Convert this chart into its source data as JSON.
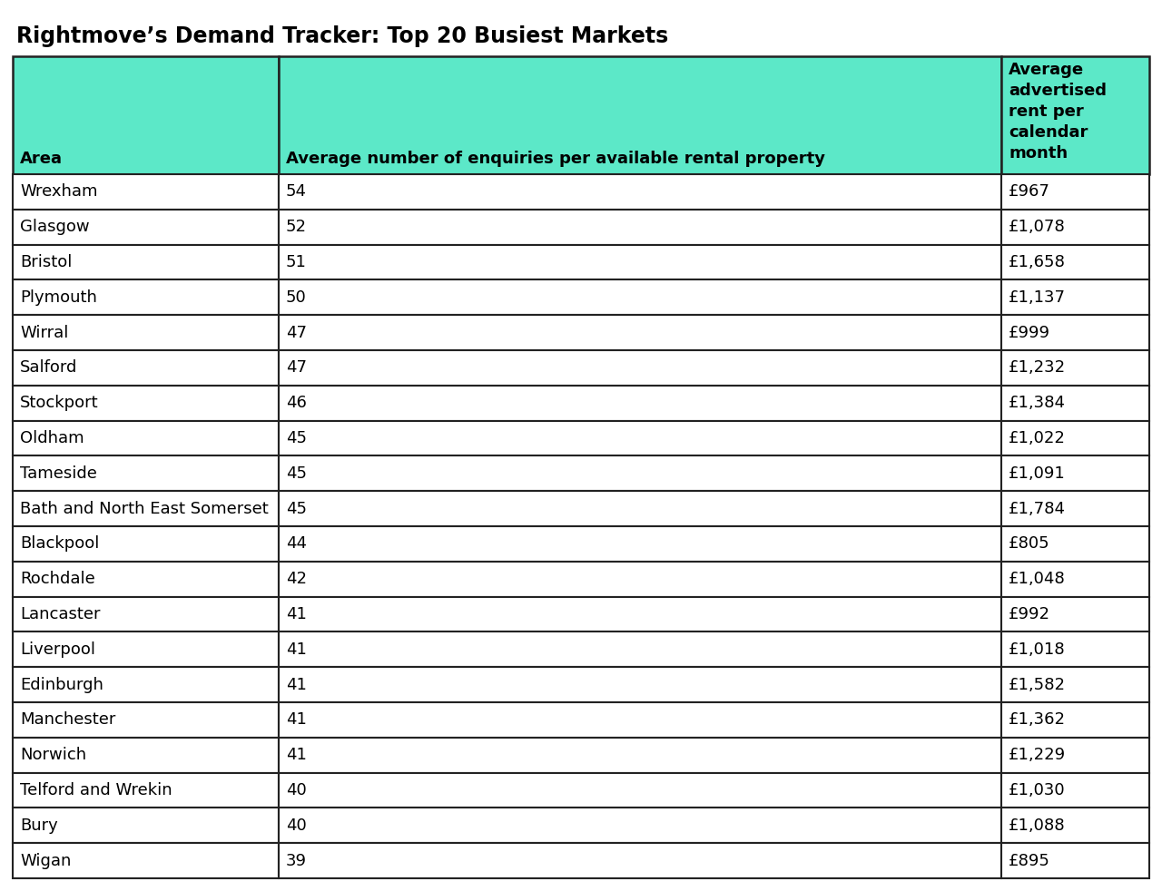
{
  "title": "Rightmove’s Demand Tracker: Top 20 Busiest Markets",
  "header_bg_color": "#5CE8C8",
  "header_text_color": "#000000",
  "row_bg_color": "#FFFFFF",
  "border_color": "#222222",
  "col1_header": "Area",
  "col2_header": "Average number of enquiries per available rental property",
  "col3_header": "Average\nadvertised\nrent per\ncalendar\nmonth",
  "areas": [
    "Wrexham",
    "Glasgow",
    "Bristol",
    "Plymouth",
    "Wirral",
    "Salford",
    "Stockport",
    "Oldham",
    "Tameside",
    "Bath and North East Somerset",
    "Blackpool",
    "Rochdale",
    "Lancaster",
    "Liverpool",
    "Edinburgh",
    "Manchester",
    "Norwich",
    "Telford and Wrekin",
    "Bury",
    "Wigan"
  ],
  "enquiries": [
    54,
    52,
    51,
    50,
    47,
    47,
    46,
    45,
    45,
    45,
    44,
    42,
    41,
    41,
    41,
    41,
    41,
    40,
    40,
    39
  ],
  "rents": [
    "£967",
    "£1,078",
    "£1,658",
    "£1,137",
    "£999",
    "£1,232",
    "£1,384",
    "£1,022",
    "£1,091",
    "£1,784",
    "£805",
    "£1,048",
    "£992",
    "£1,018",
    "£1,582",
    "£1,362",
    "£1,229",
    "£1,030",
    "£1,088",
    "£895"
  ],
  "title_fontsize": 17,
  "header_fontsize": 13,
  "row_fontsize": 13,
  "figure_bg": "#FFFFFF",
  "fig_width": 12.8,
  "fig_height": 9.82,
  "dpi": 100
}
